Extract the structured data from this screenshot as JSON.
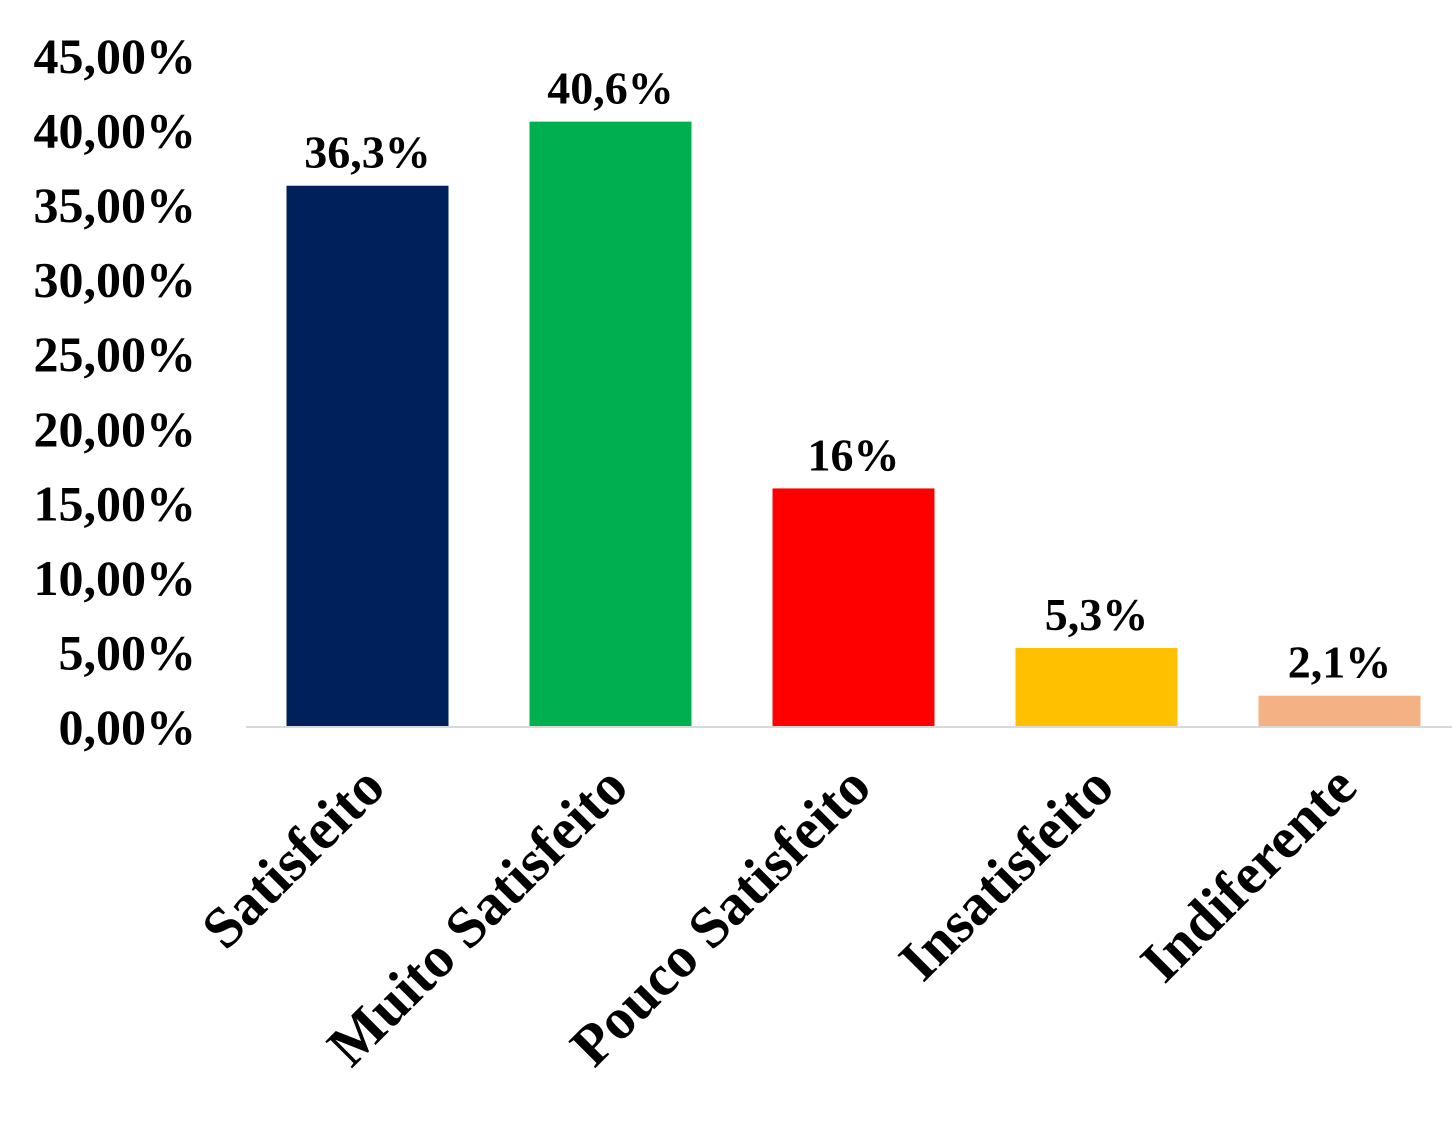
{
  "chart_data": {
    "type": "bar",
    "title": "",
    "xlabel": "",
    "ylabel": "",
    "categories": [
      "Satisfeito",
      "Muito Satisfeito",
      "Pouco Satisfeito",
      "Insatisfeito",
      "Indiferente"
    ],
    "values": [
      36.3,
      40.6,
      16,
      5.3,
      2.1
    ],
    "data_labels": [
      "36,3%",
      "40,6%",
      "16%",
      "5,3%",
      "2,1%"
    ],
    "colors": [
      "#00205B",
      "#00B050",
      "#FF0000",
      "#FFC000",
      "#F4B183"
    ],
    "ylim": [
      0,
      45
    ],
    "yticks": [
      0,
      5,
      10,
      15,
      20,
      25,
      30,
      35,
      40,
      45
    ],
    "ytick_labels": [
      "0,00%",
      "5,00%",
      "10,00%",
      "15,00%",
      "20,00%",
      "25,00%",
      "30,00%",
      "35,00%",
      "40,00%",
      "45,00%"
    ],
    "grid": false,
    "legend": "none"
  }
}
